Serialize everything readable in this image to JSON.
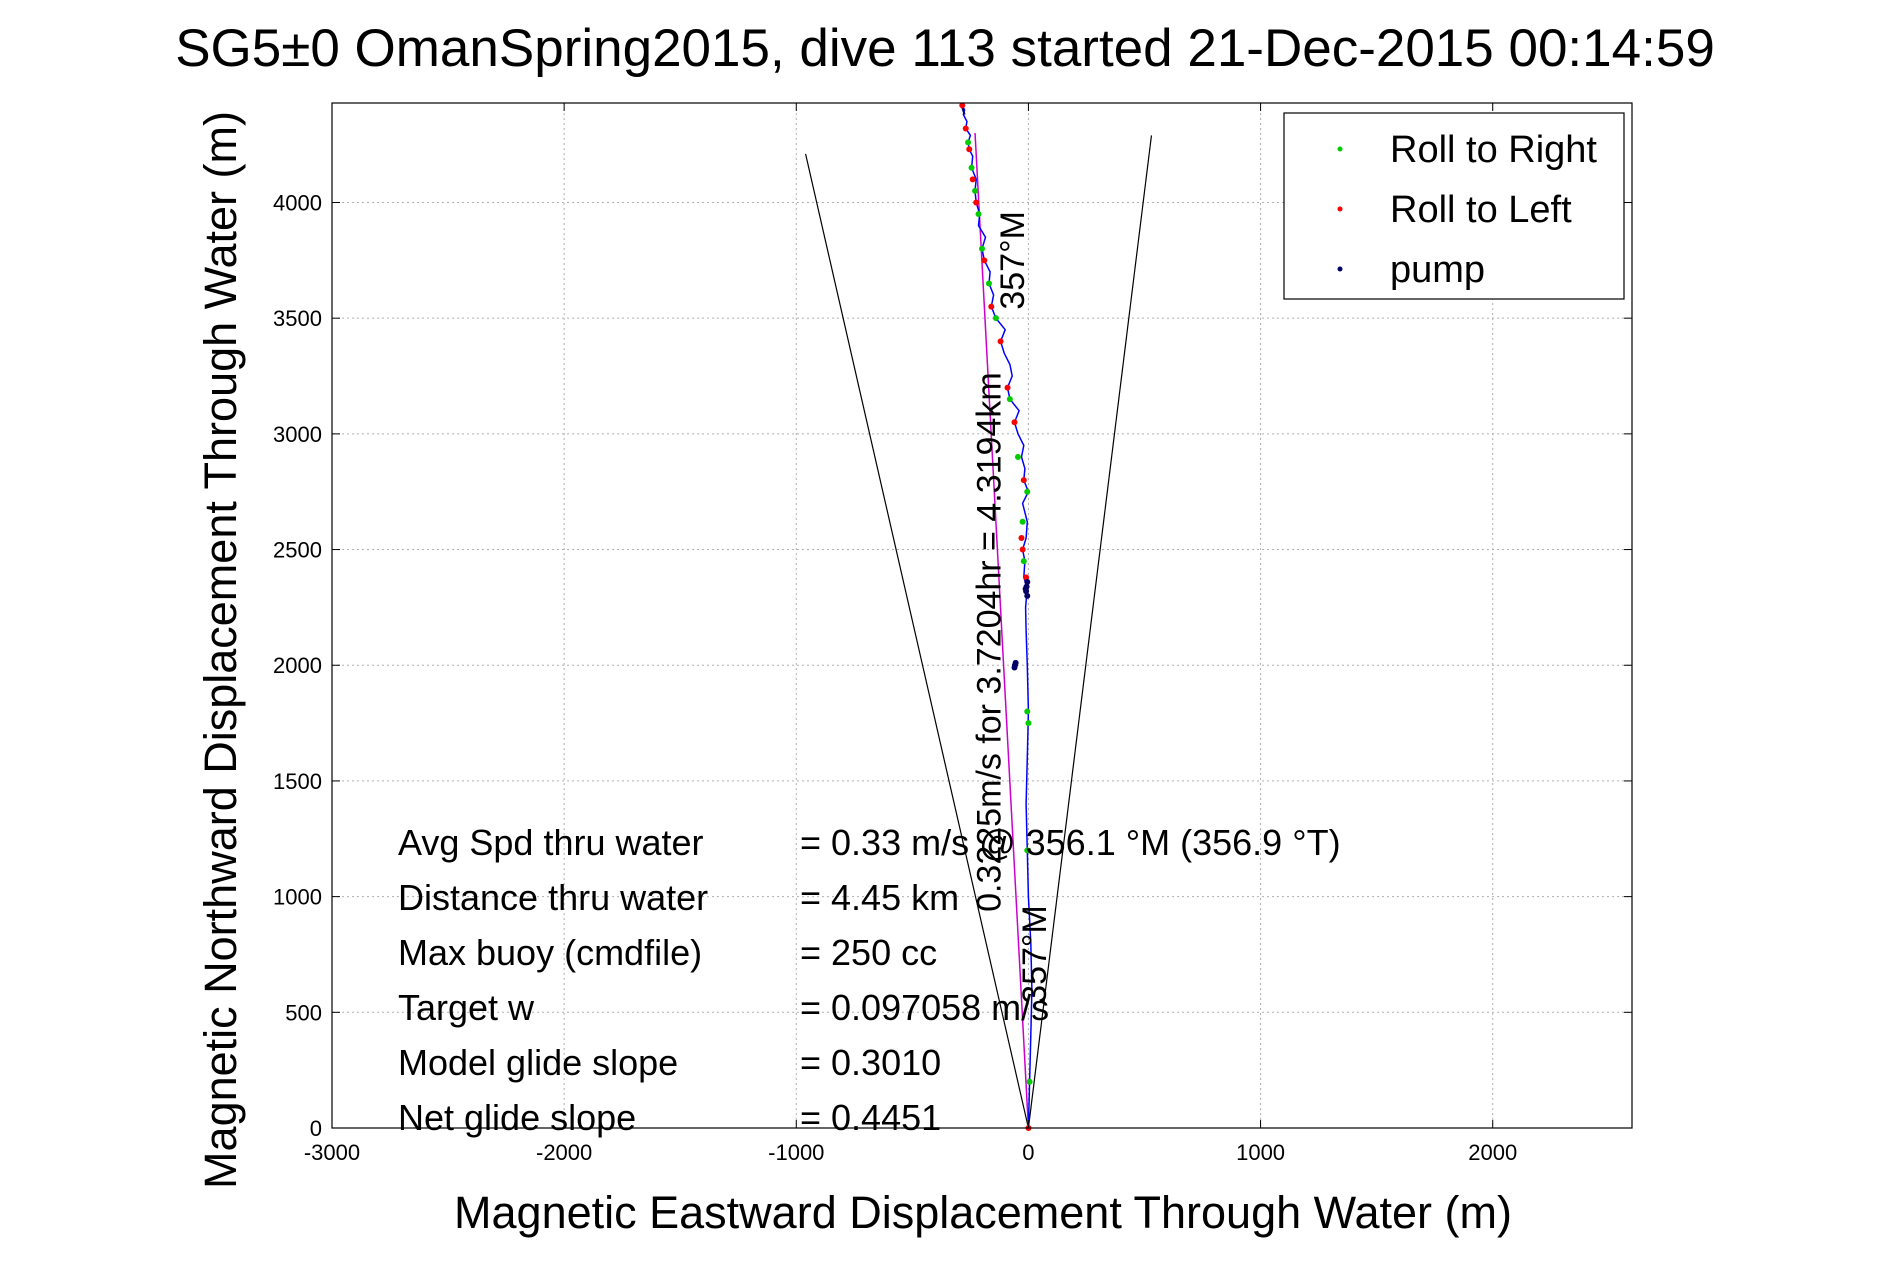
{
  "chart_data": {
    "type": "scatter",
    "title": "SG5±0 OmanSpring2015, dive 113 started 21-Dec-2015 00:14:59",
    "xlabel": "Magnetic Eastward Displacement Through Water (m)",
    "ylabel": "Magnetic Northward Displacement Through Water (m)",
    "xlim": [
      -3000,
      2600
    ],
    "ylim": [
      0,
      4430
    ],
    "xticks": [
      -3000,
      -2000,
      -1000,
      0,
      1000,
      2000
    ],
    "yticks": [
      0,
      500,
      1000,
      1500,
      2000,
      2500,
      3000,
      3500,
      4000
    ],
    "grid": true,
    "legend_position": "top-right",
    "legend": [
      {
        "label": "Roll to Right",
        "color": "#00cc00"
      },
      {
        "label": "Roll to Left",
        "color": "#ff0000"
      },
      {
        "label": "pump",
        "color": "#000066"
      }
    ],
    "colors": {
      "track": "#0000ff",
      "heading_line": "#cc00cc",
      "cone": "#000000"
    },
    "track": {
      "x": [
        0,
        5,
        10,
        15,
        10,
        0,
        -5,
        -10,
        -5,
        0,
        -5,
        -10,
        -12,
        -8,
        -5,
        -10,
        -20,
        -15,
        -25,
        -10,
        -5,
        -25,
        0,
        -20,
        -15,
        -30,
        -20,
        -45,
        -60,
        -40,
        -80,
        -90,
        -70,
        -80,
        -105,
        -120,
        -100,
        -140,
        -160,
        -150,
        -170,
        -165,
        -190,
        -200,
        -185,
        -215,
        -210,
        -225,
        -230,
        -225,
        -245,
        -240,
        -255,
        -260,
        -250,
        -270,
        -265,
        -280,
        -275,
        -285,
        -290
      ],
      "y": [
        0,
        200,
        400,
        600,
        800,
        1000,
        1200,
        1400,
        1600,
        1800,
        2000,
        2150,
        2250,
        2300,
        2330,
        2350,
        2380,
        2450,
        2500,
        2550,
        2620,
        2700,
        2750,
        2800,
        2850,
        2900,
        2950,
        3000,
        3050,
        3100,
        3150,
        3200,
        3250,
        3300,
        3350,
        3400,
        3450,
        3500,
        3550,
        3600,
        3650,
        3700,
        3750,
        3800,
        3850,
        3900,
        3950,
        4000,
        4050,
        4100,
        4150,
        4200,
        4230,
        4260,
        4290,
        4320,
        4350,
        4380,
        4400,
        4420,
        4430
      ]
    },
    "roll_to_right": {
      "x": [
        5,
        -5,
        -5,
        0,
        -20,
        -25,
        -5,
        -45,
        -80,
        -140,
        -170,
        -200,
        -215,
        -230,
        -245,
        -260
      ],
      "y": [
        200,
        1200,
        1800,
        1750,
        2450,
        2620,
        2750,
        2900,
        3150,
        3500,
        3650,
        3800,
        3950,
        4050,
        4150,
        4260
      ]
    },
    "roll_to_left": {
      "x": [
        0,
        -10,
        -25,
        -30,
        -20,
        -60,
        -90,
        -120,
        -160,
        -190,
        -225,
        -240,
        -255,
        -270,
        -285
      ],
      "y": [
        0,
        2380,
        2500,
        2550,
        2800,
        3050,
        3200,
        3400,
        3550,
        3750,
        4000,
        4100,
        4230,
        4320,
        4420
      ]
    },
    "pump": {
      "x": [
        -5,
        -12,
        -10,
        -8,
        -5,
        -55,
        -58,
        -60
      ],
      "y": [
        2300,
        2330,
        2320,
        2340,
        2360,
        2010,
        2000,
        1990
      ],
      "line_x": [
        -290,
        -285,
        -275
      ],
      "line_y": [
        4430,
        4410,
        4380
      ]
    },
    "heading_line": {
      "x": [
        0,
        -230
      ],
      "y": [
        0,
        4300
      ]
    },
    "cone_lines": [
      {
        "x": [
          0,
          -960
        ],
        "y": [
          0,
          4210
        ]
      },
      {
        "x": [
          0,
          530
        ],
        "y": [
          0,
          4290
        ]
      }
    ],
    "annotations": [
      {
        "text": "357°M",
        "x": -20,
        "y": 3750,
        "rotation": -90
      },
      {
        "text": "0.3225m/s for 3.7204hr = 4.3194km",
        "x": -120,
        "y": 2100,
        "rotation": -90
      },
      {
        "text": "357°M",
        "x": 75,
        "y": 750,
        "rotation": -90
      }
    ]
  },
  "stats": [
    {
      "label": "Avg Spd thru water",
      "value": "=  0.33 m/s @ 356.1 °M (356.9 °T)"
    },
    {
      "label": "Distance thru water",
      "value": "=  4.45 km"
    },
    {
      "label": "Max buoy (cmdfile)",
      "value": "= 250 cc"
    },
    {
      "label": "Target w",
      "value": "= 0.097058 m/s"
    },
    {
      "label": "Model glide slope",
      "value": "= 0.3010"
    },
    {
      "label": "Net glide slope",
      "value": "= 0.4451"
    }
  ]
}
